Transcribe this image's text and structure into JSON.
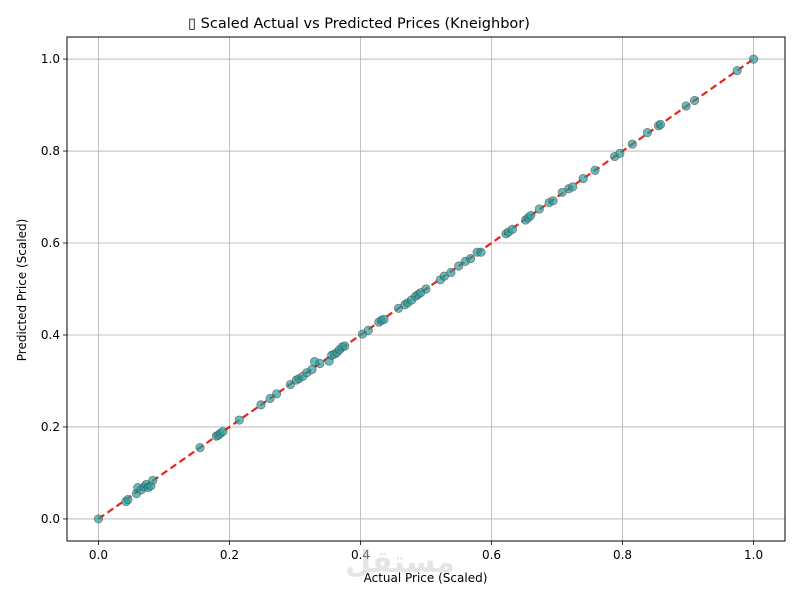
{
  "chart_data": {
    "type": "scatter",
    "title": "▯ Scaled Actual vs Predicted Prices (Kneighbor)",
    "xlabel": "Actual Price (Scaled)",
    "ylabel": "Predicted Price (Scaled)",
    "xlim": [
      -0.048,
      1.048
    ],
    "ylim": [
      -0.048,
      1.048
    ],
    "xticks": [
      "0.0",
      "0.2",
      "0.4",
      "0.6",
      "0.8",
      "1.0"
    ],
    "yticks": [
      "0.0",
      "0.2",
      "0.4",
      "0.6",
      "0.8",
      "1.0"
    ],
    "grid": true,
    "watermark": "مستقل",
    "colors": {
      "points": "#2a9d9d",
      "point_edge": "#3d3d3d",
      "reference_line": "#e8241c",
      "grid": "#b0b0b0"
    },
    "reference_line": {
      "style": "dashed",
      "from": [
        0,
        0
      ],
      "to": [
        1,
        1
      ]
    },
    "points": [
      [
        0.0,
        0.0
      ],
      [
        0.042,
        0.038
      ],
      [
        0.045,
        0.042
      ],
      [
        0.058,
        0.055
      ],
      [
        0.06,
        0.068
      ],
      [
        0.065,
        0.063
      ],
      [
        0.07,
        0.07
      ],
      [
        0.073,
        0.075
      ],
      [
        0.076,
        0.068
      ],
      [
        0.08,
        0.072
      ],
      [
        0.083,
        0.084
      ],
      [
        0.155,
        0.155
      ],
      [
        0.18,
        0.18
      ],
      [
        0.183,
        0.182
      ],
      [
        0.186,
        0.186
      ],
      [
        0.19,
        0.19
      ],
      [
        0.215,
        0.215
      ],
      [
        0.248,
        0.248
      ],
      [
        0.262,
        0.262
      ],
      [
        0.272,
        0.272
      ],
      [
        0.293,
        0.292
      ],
      [
        0.302,
        0.302
      ],
      [
        0.306,
        0.305
      ],
      [
        0.312,
        0.31
      ],
      [
        0.318,
        0.318
      ],
      [
        0.326,
        0.325
      ],
      [
        0.33,
        0.342
      ],
      [
        0.338,
        0.338
      ],
      [
        0.352,
        0.343
      ],
      [
        0.356,
        0.356
      ],
      [
        0.36,
        0.358
      ],
      [
        0.364,
        0.362
      ],
      [
        0.368,
        0.368
      ],
      [
        0.372,
        0.374
      ],
      [
        0.376,
        0.376
      ],
      [
        0.403,
        0.402
      ],
      [
        0.412,
        0.41
      ],
      [
        0.428,
        0.428
      ],
      [
        0.432,
        0.432
      ],
      [
        0.436,
        0.434
      ],
      [
        0.458,
        0.458
      ],
      [
        0.468,
        0.466
      ],
      [
        0.472,
        0.47
      ],
      [
        0.478,
        0.476
      ],
      [
        0.484,
        0.484
      ],
      [
        0.488,
        0.488
      ],
      [
        0.492,
        0.492
      ],
      [
        0.5,
        0.5
      ],
      [
        0.522,
        0.52
      ],
      [
        0.528,
        0.528
      ],
      [
        0.538,
        0.536
      ],
      [
        0.55,
        0.55
      ],
      [
        0.56,
        0.56
      ],
      [
        0.568,
        0.566
      ],
      [
        0.578,
        0.58
      ],
      [
        0.584,
        0.58
      ],
      [
        0.622,
        0.62
      ],
      [
        0.626,
        0.624
      ],
      [
        0.632,
        0.63
      ],
      [
        0.652,
        0.65
      ],
      [
        0.656,
        0.655
      ],
      [
        0.66,
        0.66
      ],
      [
        0.673,
        0.674
      ],
      [
        0.688,
        0.688
      ],
      [
        0.694,
        0.692
      ],
      [
        0.708,
        0.71
      ],
      [
        0.718,
        0.718
      ],
      [
        0.724,
        0.722
      ],
      [
        0.74,
        0.74
      ],
      [
        0.758,
        0.758
      ],
      [
        0.788,
        0.788
      ],
      [
        0.796,
        0.795
      ],
      [
        0.815,
        0.815
      ],
      [
        0.838,
        0.84
      ],
      [
        0.855,
        0.855
      ],
      [
        0.858,
        0.858
      ],
      [
        0.897,
        0.898
      ],
      [
        0.91,
        0.91
      ],
      [
        0.975,
        0.975
      ],
      [
        1.0,
        1.0
      ]
    ]
  }
}
